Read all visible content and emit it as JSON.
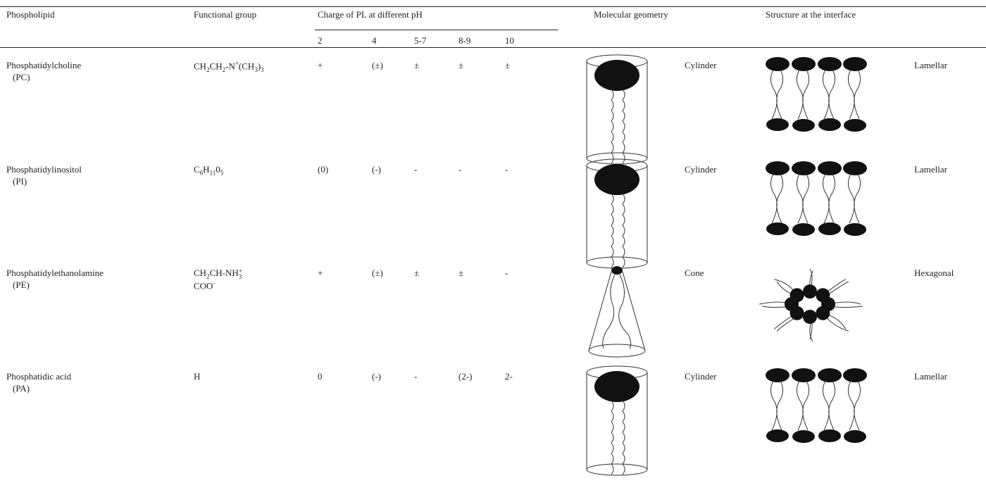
{
  "header": {
    "columns": [
      "Phospholipid",
      "Functional group",
      "Charge of PL at different pH",
      "Molecular geometry",
      "Structure at the interface"
    ],
    "ph_values": [
      "2",
      "4",
      "5-7",
      "8-9",
      "10"
    ]
  },
  "rows": [
    {
      "name": "Phosphatidylcholine",
      "abbr": "(PC)",
      "functional_group": [
        [
          {
            "text": "CH"
          },
          {
            "sub": "2"
          },
          {
            "text": "CH"
          },
          {
            "sub": "2"
          },
          {
            "text": "-N"
          },
          {
            "sup": "+"
          },
          {
            "text": "(CH"
          },
          {
            "sub": "3"
          },
          {
            "text": ")"
          },
          {
            "sub": "3"
          }
        ]
      ],
      "charges": [
        "+",
        "(±)",
        "±",
        "±",
        "±"
      ],
      "geometry": "Cylinder",
      "structure": "Lamellar"
    },
    {
      "name": "Phosphatidylinositol",
      "abbr": "(PI)",
      "functional_group": [
        [
          {
            "text": "C"
          },
          {
            "sub": "6"
          },
          {
            "text": "H"
          },
          {
            "sub": "11"
          },
          {
            "text": "0"
          },
          {
            "sub": "5"
          }
        ]
      ],
      "charges": [
        "(0)",
        "(-)",
        "-",
        "-",
        "-"
      ],
      "geometry": "Cylinder",
      "structure": "Lamellar"
    },
    {
      "name": "Phosphatidylethanolamine",
      "abbr": "(PE)",
      "functional_group": [
        [
          {
            "text": "CH"
          },
          {
            "sub": "2"
          },
          {
            "text": "CH-NH"
          },
          {
            "sub": "3",
            "sup": "+"
          }
        ],
        [
          {
            "text": "COO"
          },
          {
            "sup": "-"
          }
        ]
      ],
      "charges": [
        "+",
        "(±)",
        "±",
        "±",
        "-"
      ],
      "geometry": "Cone",
      "structure": "Hexagonal"
    },
    {
      "name": "Phosphatidic acid",
      "abbr": "(PA)",
      "functional_group": [
        [
          {
            "text": "H"
          }
        ]
      ],
      "charges": [
        "0",
        "(-)",
        "-",
        "(2-)",
        "2-"
      ],
      "geometry": "Cylinder",
      "structure": "Lamellar"
    }
  ]
}
